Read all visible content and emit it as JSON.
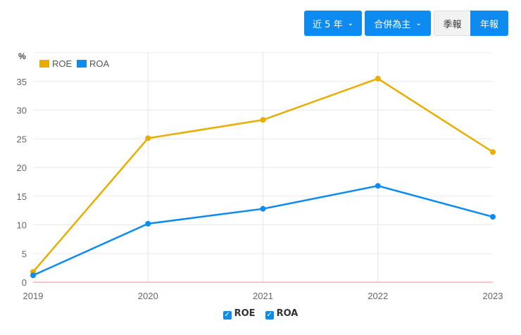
{
  "controls": {
    "period": "近 5 年",
    "scope": "合併為主",
    "quarterly": "季報",
    "annual": "年報",
    "active": "年報"
  },
  "colors": {
    "ROE": "#e8ad00",
    "ROA": "#0d8bf0",
    "button": "#0d8bf0"
  },
  "chart_data": {
    "type": "line",
    "ylabel": "%",
    "categories": [
      "2019",
      "2020",
      "2021",
      "2022",
      "2023"
    ],
    "series": [
      {
        "name": "ROE",
        "values": [
          1.8,
          25.1,
          28.3,
          35.5,
          22.7
        ]
      },
      {
        "name": "ROA",
        "values": [
          1.2,
          10.2,
          12.8,
          16.8,
          11.4
        ]
      }
    ],
    "ylim": [
      0,
      40
    ],
    "yticks": [
      0,
      5,
      10,
      15,
      20,
      25,
      30,
      35
    ],
    "grid": true,
    "legend": "top-left",
    "bottom_legend": [
      "ROE",
      "ROA"
    ]
  }
}
